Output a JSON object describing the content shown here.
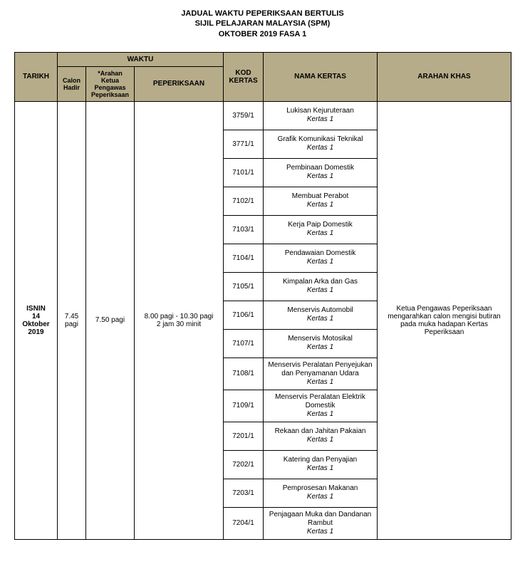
{
  "title": {
    "line1": "JADUAL WAKTU PEPERIKSAAN BERTULIS",
    "line2": "SIJIL PELAJARAN MALAYSIA (SPM)",
    "line3": "OKTOBER 2019  FASA 1"
  },
  "headers": {
    "tarikh": "TARIKH",
    "waktu": "WAKTU",
    "calon": "Calon Hadir",
    "arahan_ketua": "*Arahan Ketua Pengawas Peperiksaan",
    "peperiksaan": "PEPERIKSAAN",
    "kod": "KOD KERTAS",
    "nama": "NAMA KERTAS",
    "khas": "ARAHAN KHAS"
  },
  "session": {
    "day": "ISNIN",
    "date": "14 Oktober 2019",
    "calon_hadir": "7.45 pagi",
    "arahan_ketua": "7.50 pagi",
    "peperiksaan_line1": "8.00 pagi - 10.30 pagi",
    "peperiksaan_line2": "2 jam 30 minit",
    "arahan_khas": "Ketua Pengawas Peperiksaan mengarahkan calon mengisi butiran pada muka hadapan Kertas Peperiksaan"
  },
  "paper_sub": "Kertas 1",
  "papers": [
    {
      "kod": "3759/1",
      "name": "Lukisan Kejuruteraan"
    },
    {
      "kod": "3771/1",
      "name": "Grafik Komunikasi Teknikal"
    },
    {
      "kod": "7101/1",
      "name": "Pembinaan Domestik"
    },
    {
      "kod": "7102/1",
      "name": "Membuat Perabot"
    },
    {
      "kod": "7103/1",
      "name": "Kerja Paip Domestik"
    },
    {
      "kod": "7104/1",
      "name": "Pendawaian Domestik"
    },
    {
      "kod": "7105/1",
      "name": "Kimpalan Arka dan Gas"
    },
    {
      "kod": "7106/1",
      "name": "Menservis Automobil"
    },
    {
      "kod": "7107/1",
      "name": "Menservis Motosikal"
    },
    {
      "kod": "7108/1",
      "name": "Menservis Peralatan Penyejukan dan Penyamanan Udara"
    },
    {
      "kod": "7109/1",
      "name": "Menservis Peralatan Elektrik Domestik"
    },
    {
      "kod": "7201/1",
      "name": "Rekaan dan Jahitan Pakaian"
    },
    {
      "kod": "7202/1",
      "name": "Katering dan Penyajian"
    },
    {
      "kod": "7203/1",
      "name": "Pemprosesan Makanan"
    },
    {
      "kod": "7204/1",
      "name": "Penjagaan Muka dan Dandanan Rambut"
    }
  ],
  "colors": {
    "header_bg": "#b6ac89",
    "border": "#000000",
    "text": "#000000",
    "bg": "#ffffff"
  }
}
